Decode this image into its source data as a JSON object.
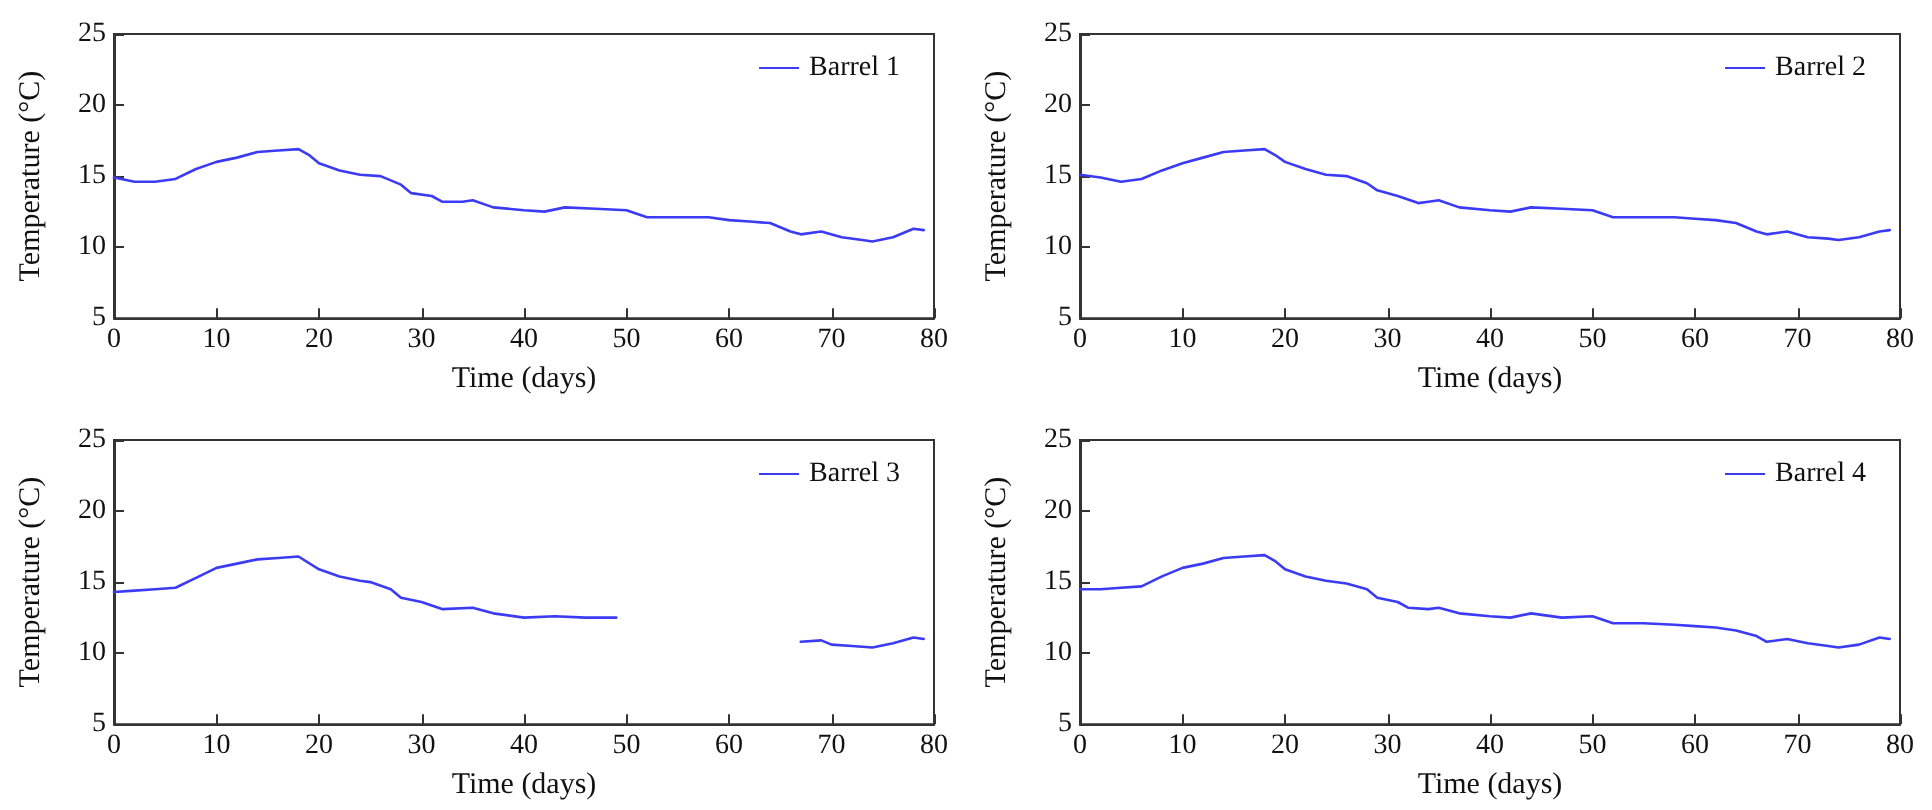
{
  "chart_data": [
    {
      "type": "line",
      "xlabel": "Time (days)",
      "ylabel": "Temperature (°C)",
      "xlim": [
        0,
        80
      ],
      "xticks": [
        0,
        10,
        20,
        30,
        40,
        50,
        60,
        70,
        80
      ],
      "ylim": [
        5,
        25
      ],
      "yticks": [
        5,
        10,
        15,
        20,
        25
      ],
      "grid": false,
      "legend": "top right",
      "marker": "none",
      "x": [
        0,
        2,
        4,
        6,
        8,
        10,
        12,
        14,
        16,
        18,
        19,
        20,
        22,
        24,
        26,
        28,
        29,
        31,
        32,
        34,
        35,
        37,
        40,
        42,
        44,
        47,
        50,
        52,
        55,
        58,
        60,
        62,
        64,
        66,
        67,
        69,
        71,
        73,
        74,
        76,
        78,
        79
      ],
      "series": [
        {
          "name": "Barrel 1",
          "color": "#3b3bf5",
          "values": [
            14.9,
            14.6,
            14.6,
            14.8,
            15.5,
            16.0,
            16.3,
            16.7,
            16.8,
            16.9,
            16.5,
            15.9,
            15.4,
            15.1,
            15.0,
            14.4,
            13.8,
            13.6,
            13.2,
            13.2,
            13.3,
            12.8,
            12.6,
            12.5,
            12.8,
            12.7,
            12.6,
            12.1,
            12.1,
            12.1,
            11.9,
            11.8,
            11.7,
            11.1,
            10.9,
            11.1,
            10.7,
            10.5,
            10.4,
            10.7,
            11.3,
            11.2
          ]
        }
      ]
    },
    {
      "type": "line",
      "xlabel": "Time (days)",
      "ylabel": "Temperature (°C)",
      "xlim": [
        0,
        80
      ],
      "xticks": [
        0,
        10,
        20,
        30,
        40,
        50,
        60,
        70,
        80
      ],
      "ylim": [
        5,
        25
      ],
      "yticks": [
        5,
        10,
        15,
        20,
        25
      ],
      "grid": false,
      "legend": "top right",
      "marker": "none",
      "x": [
        0,
        2,
        4,
        6,
        8,
        10,
        12,
        14,
        16,
        18,
        19,
        20,
        22,
        24,
        26,
        28,
        29,
        31,
        33,
        34,
        35,
        37,
        40,
        42,
        44,
        47,
        50,
        52,
        55,
        58,
        60,
        62,
        64,
        66,
        67,
        69,
        71,
        73,
        74,
        76,
        78,
        79
      ],
      "series": [
        {
          "name": "Barrel 2",
          "color": "#3b3bf5",
          "values": [
            15.1,
            14.9,
            14.6,
            14.8,
            15.4,
            15.9,
            16.3,
            16.7,
            16.8,
            16.9,
            16.5,
            16.0,
            15.5,
            15.1,
            15.0,
            14.5,
            14.0,
            13.6,
            13.1,
            13.2,
            13.3,
            12.8,
            12.6,
            12.5,
            12.8,
            12.7,
            12.6,
            12.1,
            12.1,
            12.1,
            12.0,
            11.9,
            11.7,
            11.1,
            10.9,
            11.1,
            10.7,
            10.6,
            10.5,
            10.7,
            11.1,
            11.2
          ]
        }
      ]
    },
    {
      "type": "line",
      "xlabel": "Time (days)",
      "ylabel": "Temperature (°C)",
      "xlim": [
        0,
        80
      ],
      "xticks": [
        0,
        10,
        20,
        30,
        40,
        50,
        60,
        70,
        80
      ],
      "ylim": [
        5,
        25
      ],
      "yticks": [
        5,
        10,
        15,
        20,
        25
      ],
      "grid": false,
      "legend": "top right",
      "marker": "none",
      "x": [
        0,
        2,
        4,
        6,
        8,
        10,
        12,
        14,
        16,
        18,
        20,
        22,
        24,
        25,
        27,
        28,
        30,
        32,
        35,
        37,
        40,
        43,
        46,
        49,
        58,
        67,
        69,
        70,
        72,
        74,
        76,
        78,
        79
      ],
      "series": [
        {
          "name": "Barrel 3",
          "color": "#3b3bf5",
          "values": [
            14.3,
            14.4,
            14.5,
            14.6,
            15.3,
            16.0,
            16.3,
            16.6,
            16.7,
            16.8,
            15.9,
            15.4,
            15.1,
            15.0,
            14.5,
            13.9,
            13.6,
            13.1,
            13.2,
            12.8,
            12.5,
            12.6,
            12.5,
            12.5,
            null,
            10.8,
            10.9,
            10.6,
            10.5,
            10.4,
            10.7,
            11.1,
            11.0
          ]
        }
      ]
    },
    {
      "type": "line",
      "xlabel": "Time (days)",
      "ylabel": "Temperature (°C)",
      "xlim": [
        0,
        80
      ],
      "xticks": [
        0,
        10,
        20,
        30,
        40,
        50,
        60,
        70,
        80
      ],
      "ylim": [
        5,
        25
      ],
      "yticks": [
        5,
        10,
        15,
        20,
        25
      ],
      "grid": false,
      "legend": "top right",
      "marker": "none",
      "x": [
        0,
        2,
        4,
        6,
        8,
        10,
        12,
        14,
        16,
        18,
        19,
        20,
        22,
        24,
        26,
        28,
        29,
        31,
        32,
        34,
        35,
        37,
        40,
        42,
        44,
        47,
        50,
        52,
        55,
        58,
        60,
        62,
        64,
        66,
        67,
        69,
        71,
        73,
        74,
        76,
        78,
        79
      ],
      "series": [
        {
          "name": "Barrel 4",
          "color": "#3b3bf5",
          "values": [
            14.5,
            14.5,
            14.6,
            14.7,
            15.4,
            16.0,
            16.3,
            16.7,
            16.8,
            16.9,
            16.5,
            15.9,
            15.4,
            15.1,
            14.9,
            14.5,
            13.9,
            13.6,
            13.2,
            13.1,
            13.2,
            12.8,
            12.6,
            12.5,
            12.8,
            12.5,
            12.6,
            12.1,
            12.1,
            12.0,
            11.9,
            11.8,
            11.6,
            11.2,
            10.8,
            11.0,
            10.7,
            10.5,
            10.4,
            10.6,
            11.1,
            11.0
          ]
        }
      ]
    }
  ]
}
